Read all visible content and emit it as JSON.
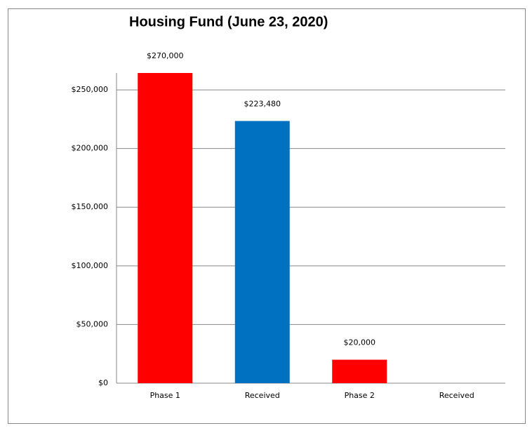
{
  "chart_data": {
    "type": "bar",
    "title": "Housing Fund (June 23, 2020)",
    "categories": [
      "Phase 1",
      "Received",
      "Phase 2",
      "Received"
    ],
    "values": [
      270000,
      223480,
      20000,
      null
    ],
    "value_labels": [
      "$270,000",
      "$223,480",
      "$20,000",
      null
    ],
    "colors": [
      "#ff0000",
      "#0070c0",
      "#ff0000",
      null
    ],
    "ylim": [
      0,
      264400
    ],
    "yticks": [
      {
        "value": 0,
        "label": "$0"
      },
      {
        "value": 50000,
        "label": "$50,000"
      },
      {
        "value": 100000,
        "label": "$100,000"
      },
      {
        "value": 150000,
        "label": "$150,000"
      },
      {
        "value": 200000,
        "label": "$200,000"
      },
      {
        "value": 250000,
        "label": "$250,000"
      }
    ],
    "grid": true
  }
}
